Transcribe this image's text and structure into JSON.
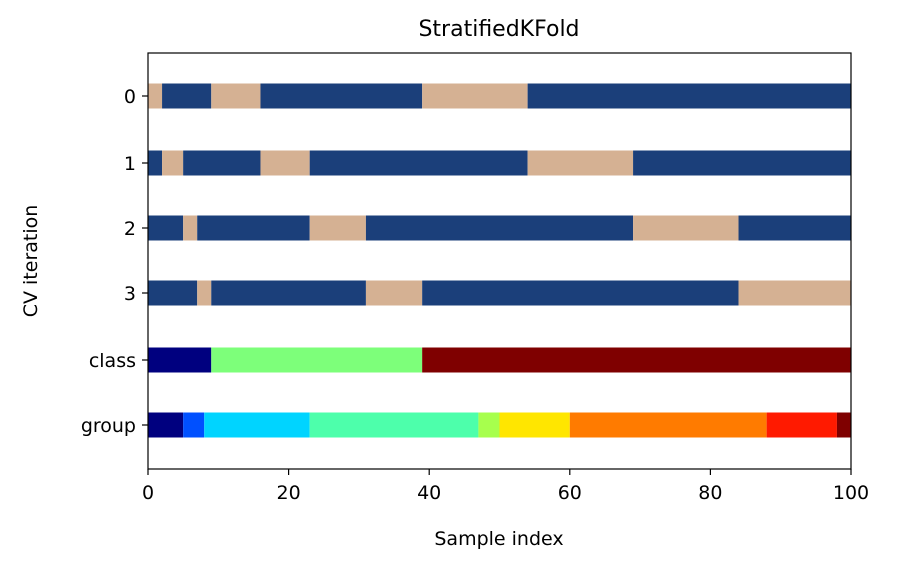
{
  "chart_data": {
    "type": "bar",
    "orientation": "horizontal",
    "title": "StratifiedKFold",
    "xlabel": "Sample index",
    "ylabel": "CV iteration",
    "xlim": [
      0,
      100
    ],
    "x_ticks": [
      0,
      20,
      40,
      60,
      80,
      100
    ],
    "y_categories": [
      "0",
      "1",
      "2",
      "3",
      "class",
      "group"
    ],
    "grid": false,
    "legend": "none",
    "colors": {
      "train": "#1b3f7a",
      "test": "#d5b193"
    },
    "rows": [
      {
        "label": "0",
        "segments": [
          {
            "start": 0,
            "end": 2,
            "color": "#d5b193"
          },
          {
            "start": 2,
            "end": 9,
            "color": "#1b3f7a"
          },
          {
            "start": 9,
            "end": 16,
            "color": "#d5b193"
          },
          {
            "start": 16,
            "end": 39,
            "color": "#1b3f7a"
          },
          {
            "start": 39,
            "end": 54,
            "color": "#d5b193"
          },
          {
            "start": 54,
            "end": 100,
            "color": "#1b3f7a"
          }
        ]
      },
      {
        "label": "1",
        "segments": [
          {
            "start": 0,
            "end": 2,
            "color": "#1b3f7a"
          },
          {
            "start": 2,
            "end": 5,
            "color": "#d5b193"
          },
          {
            "start": 5,
            "end": 16,
            "color": "#1b3f7a"
          },
          {
            "start": 16,
            "end": 23,
            "color": "#d5b193"
          },
          {
            "start": 23,
            "end": 54,
            "color": "#1b3f7a"
          },
          {
            "start": 54,
            "end": 69,
            "color": "#d5b193"
          },
          {
            "start": 69,
            "end": 100,
            "color": "#1b3f7a"
          }
        ]
      },
      {
        "label": "2",
        "segments": [
          {
            "start": 0,
            "end": 5,
            "color": "#1b3f7a"
          },
          {
            "start": 5,
            "end": 7,
            "color": "#d5b193"
          },
          {
            "start": 7,
            "end": 23,
            "color": "#1b3f7a"
          },
          {
            "start": 23,
            "end": 31,
            "color": "#d5b193"
          },
          {
            "start": 31,
            "end": 69,
            "color": "#1b3f7a"
          },
          {
            "start": 69,
            "end": 84,
            "color": "#d5b193"
          },
          {
            "start": 84,
            "end": 100,
            "color": "#1b3f7a"
          }
        ]
      },
      {
        "label": "3",
        "segments": [
          {
            "start": 0,
            "end": 7,
            "color": "#1b3f7a"
          },
          {
            "start": 7,
            "end": 9,
            "color": "#d5b193"
          },
          {
            "start": 9,
            "end": 31,
            "color": "#1b3f7a"
          },
          {
            "start": 31,
            "end": 39,
            "color": "#d5b193"
          },
          {
            "start": 39,
            "end": 84,
            "color": "#1b3f7a"
          },
          {
            "start": 84,
            "end": 100,
            "color": "#d5b193"
          }
        ]
      },
      {
        "label": "class",
        "segments": [
          {
            "start": 0,
            "end": 9,
            "color": "#00007f"
          },
          {
            "start": 9,
            "end": 39,
            "color": "#7dff7a"
          },
          {
            "start": 39,
            "end": 100,
            "color": "#7f0000"
          }
        ]
      },
      {
        "label": "group",
        "segments": [
          {
            "start": 0,
            "end": 5,
            "color": "#00007f"
          },
          {
            "start": 5,
            "end": 8,
            "color": "#0050ff"
          },
          {
            "start": 8,
            "end": 23,
            "color": "#00d4ff"
          },
          {
            "start": 23,
            "end": 47,
            "color": "#4dffab"
          },
          {
            "start": 47,
            "end": 50,
            "color": "#a7ff4d"
          },
          {
            "start": 50,
            "end": 60,
            "color": "#ffe600"
          },
          {
            "start": 60,
            "end": 88,
            "color": "#ff7b00"
          },
          {
            "start": 88,
            "end": 98,
            "color": "#ff1a00"
          },
          {
            "start": 98,
            "end": 100,
            "color": "#7f0000"
          }
        ]
      }
    ]
  }
}
